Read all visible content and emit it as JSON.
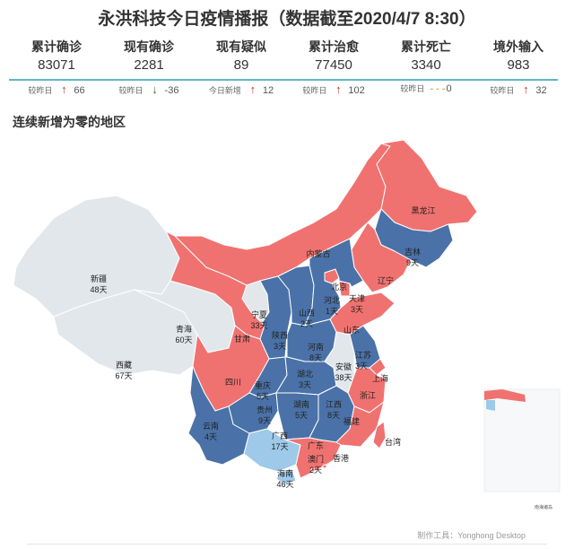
{
  "title": "永洪科技今日疫情播报（数据截至2020/4/7 8:30）",
  "stats": [
    {
      "label": "累计确诊",
      "value": "83071",
      "delta_label": "较昨日",
      "direction": "up",
      "delta": "66"
    },
    {
      "label": "现有确诊",
      "value": "2281",
      "delta_label": "较昨日",
      "direction": "down",
      "delta": "-36"
    },
    {
      "label": "现有疑似",
      "value": "89",
      "delta_label": "今日新增",
      "direction": "up",
      "delta": "12"
    },
    {
      "label": "累计治愈",
      "value": "77450",
      "delta_label": "较昨日",
      "direction": "up",
      "delta": "102"
    },
    {
      "label": "累计死亡",
      "value": "3340",
      "delta_label": "较昨日",
      "direction": "flat",
      "delta": "0"
    },
    {
      "label": "境外输入",
      "value": "983",
      "delta_label": "较昨日",
      "direction": "up",
      "delta": "32"
    }
  ],
  "icons": {
    "up": "arrow-up-icon",
    "down": "arrow-down-icon",
    "flat": "dash-icon"
  },
  "colors": {
    "red": "#f07270",
    "blue": "#4a72a8",
    "light_blue": "#9fc9e8",
    "gray": "#e2e7ec",
    "teal": "#5ab8c8"
  },
  "map": {
    "section_title": "连续新增为零的地区",
    "regions": [
      {
        "name": "新疆",
        "days": "48天",
        "status": "gray"
      },
      {
        "name": "西藏",
        "days": "67天",
        "status": "gray"
      },
      {
        "name": "青海",
        "days": "60天",
        "status": "gray"
      },
      {
        "name": "甘肃",
        "days": "",
        "status": "red"
      },
      {
        "name": "宁夏",
        "days": "33天",
        "status": "gray"
      },
      {
        "name": "内蒙古",
        "days": "",
        "status": "red"
      },
      {
        "name": "黑龙江",
        "days": "",
        "status": "red"
      },
      {
        "name": "吉林",
        "days": "9天",
        "status": "blue"
      },
      {
        "name": "辽宁",
        "days": "",
        "status": "red"
      },
      {
        "name": "北京",
        "days": "",
        "status": "red"
      },
      {
        "name": "天津",
        "days": "3天",
        "status": "red"
      },
      {
        "name": "河北",
        "days": "1天",
        "status": "blue"
      },
      {
        "name": "山西",
        "days": "2天",
        "status": "blue"
      },
      {
        "name": "山东",
        "days": "",
        "status": "red"
      },
      {
        "name": "陕西",
        "days": "3天",
        "status": "blue"
      },
      {
        "name": "河南",
        "days": "8天",
        "status": "blue"
      },
      {
        "name": "四川",
        "days": "",
        "status": "red"
      },
      {
        "name": "重庆",
        "days": "5天",
        "status": "blue"
      },
      {
        "name": "湖北",
        "days": "3天",
        "status": "blue"
      },
      {
        "name": "安徽",
        "days": "38天",
        "status": "gray"
      },
      {
        "name": "江苏",
        "days": "3天",
        "status": "blue"
      },
      {
        "name": "上海",
        "days": "",
        "status": "red"
      },
      {
        "name": "浙江",
        "days": "",
        "status": "red"
      },
      {
        "name": "贵州",
        "days": "9天",
        "status": "blue"
      },
      {
        "name": "湖南",
        "days": "5天",
        "status": "blue"
      },
      {
        "name": "江西",
        "days": "8天",
        "status": "blue"
      },
      {
        "name": "福建",
        "days": "",
        "status": "red"
      },
      {
        "name": "云南",
        "days": "4天",
        "status": "blue"
      },
      {
        "name": "广西",
        "days": "17天",
        "status": "light_blue"
      },
      {
        "name": "广东",
        "days": "",
        "status": "red"
      },
      {
        "name": "香港",
        "days": "",
        "status": "red"
      },
      {
        "name": "澳门",
        "days": "2天",
        "status": "red"
      },
      {
        "name": "台湾",
        "days": "",
        "status": "red"
      },
      {
        "name": "海南",
        "days": "46天",
        "status": "light_blue"
      }
    ],
    "inset_label": "南海诸岛"
  },
  "credit": "制作工具：Yonghong Desktop"
}
